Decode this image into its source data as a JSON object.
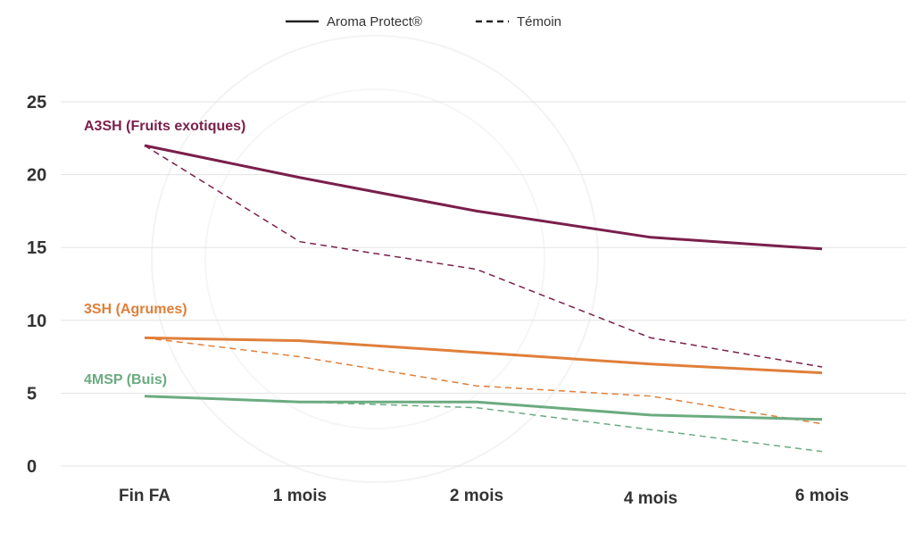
{
  "chart_data": {
    "type": "line",
    "categories": [
      "Fin FA",
      "1 mois",
      "2 mois",
      "4 mois",
      "6 mois"
    ],
    "ylim": [
      0,
      25
    ],
    "yticks": [
      0,
      5,
      10,
      15,
      20,
      25
    ],
    "grid": true,
    "legend_position": "top-center",
    "legend": {
      "solid_label": "Aroma Protect®",
      "dashed_label": "Témoin"
    },
    "series": [
      {
        "name": "A3SH (Fruits exotiques)",
        "color": "#7a1f4b",
        "aroma_protect": [
          22,
          19.8,
          17.5,
          15.7,
          14.9
        ],
        "temoin": [
          22,
          15.4,
          13.5,
          8.8,
          6.8
        ]
      },
      {
        "name": "3SH (Agrumes)",
        "color": "#e07f3a",
        "aroma_protect": [
          8.8,
          8.6,
          7.8,
          7.0,
          6.4
        ],
        "temoin": [
          8.8,
          7.5,
          5.5,
          4.8,
          2.9
        ]
      },
      {
        "name": "4MSP (Buis)",
        "color": "#6bab80",
        "aroma_protect": [
          4.8,
          4.4,
          4.4,
          3.5,
          3.2
        ],
        "temoin": [
          4.8,
          4.4,
          4.0,
          2.5,
          1.0
        ]
      }
    ]
  }
}
